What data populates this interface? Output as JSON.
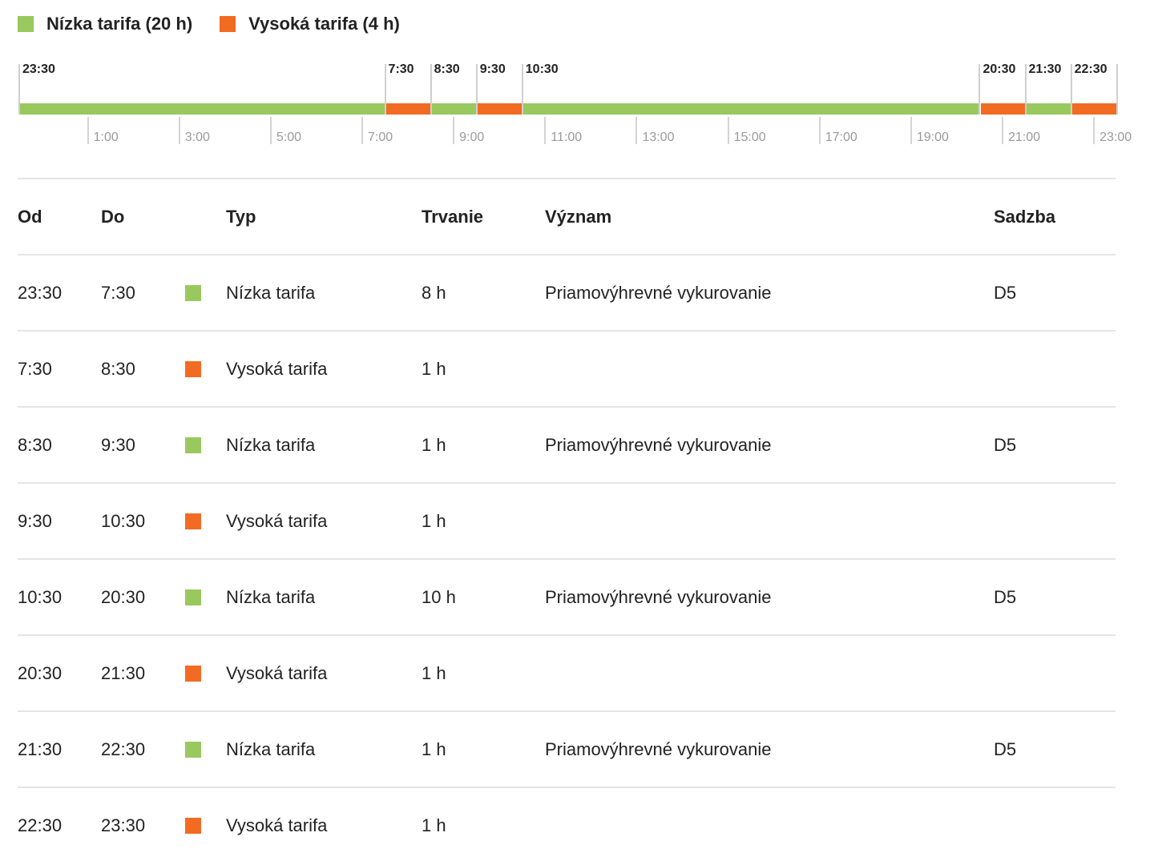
{
  "colors": {
    "low": "#99c85f",
    "high": "#f26b23"
  },
  "legend": [
    {
      "label": "Nízka tarifa (20 h)",
      "color_key": "low"
    },
    {
      "label": "Vysoká tarifa (4 h)",
      "color_key": "high"
    }
  ],
  "timeline": {
    "segments": [
      {
        "from": "23:30",
        "to": "7:30",
        "type": "low"
      },
      {
        "from": "7:30",
        "to": "8:30",
        "type": "high"
      },
      {
        "from": "8:30",
        "to": "9:30",
        "type": "low"
      },
      {
        "from": "9:30",
        "to": "10:30",
        "type": "high"
      },
      {
        "from": "10:30",
        "to": "20:30",
        "type": "low"
      },
      {
        "from": "20:30",
        "to": "21:30",
        "type": "high"
      },
      {
        "from": "21:30",
        "to": "22:30",
        "type": "low"
      },
      {
        "from": "22:30",
        "to": "23:30",
        "type": "high"
      }
    ],
    "top_labels": [
      "23:30",
      "7:30",
      "8:30",
      "9:30",
      "10:30",
      "20:30",
      "21:30",
      "22:30"
    ],
    "bottom_labels": [
      "1:00",
      "3:00",
      "5:00",
      "7:00",
      "9:00",
      "11:00",
      "13:00",
      "15:00",
      "17:00",
      "19:00",
      "21:00",
      "23:00"
    ]
  },
  "table": {
    "headers": {
      "od": "Od",
      "do": "Do",
      "typ": "Typ",
      "trvanie": "Trvanie",
      "vyznam": "Význam",
      "sadzba": "Sadzba"
    },
    "rows": [
      {
        "od": "23:30",
        "do": "7:30",
        "type": "low",
        "typ": "Nízka tarifa",
        "trvanie": "8 h",
        "vyznam": "Priamovýhrevné vykurovanie",
        "sadzba": "D5"
      },
      {
        "od": "7:30",
        "do": "8:30",
        "type": "high",
        "typ": "Vysoká tarifa",
        "trvanie": "1 h",
        "vyznam": "",
        "sadzba": ""
      },
      {
        "od": "8:30",
        "do": "9:30",
        "type": "low",
        "typ": "Nízka tarifa",
        "trvanie": "1 h",
        "vyznam": "Priamovýhrevné vykurovanie",
        "sadzba": "D5"
      },
      {
        "od": "9:30",
        "do": "10:30",
        "type": "high",
        "typ": "Vysoká tarifa",
        "trvanie": "1 h",
        "vyznam": "",
        "sadzba": ""
      },
      {
        "od": "10:30",
        "do": "20:30",
        "type": "low",
        "typ": "Nízka tarifa",
        "trvanie": "10 h",
        "vyznam": "Priamovýhrevné vykurovanie",
        "sadzba": "D5"
      },
      {
        "od": "20:30",
        "do": "21:30",
        "type": "high",
        "typ": "Vysoká tarifa",
        "trvanie": "1 h",
        "vyznam": "",
        "sadzba": ""
      },
      {
        "od": "21:30",
        "do": "22:30",
        "type": "low",
        "typ": "Nízka tarifa",
        "trvanie": "1 h",
        "vyznam": "Priamovýhrevné vykurovanie",
        "sadzba": "D5"
      },
      {
        "od": "22:30",
        "do": "23:30",
        "type": "high",
        "typ": "Vysoká tarifa",
        "trvanie": "1 h",
        "vyznam": "",
        "sadzba": ""
      }
    ]
  }
}
